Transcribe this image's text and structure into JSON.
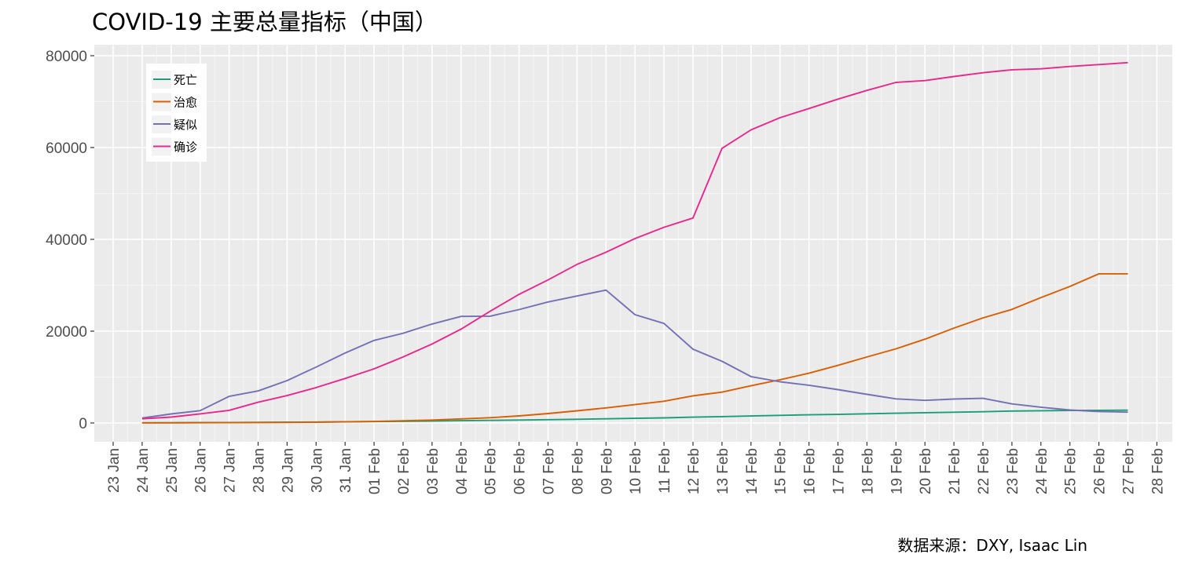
{
  "chart_data": {
    "type": "line",
    "title": "COVID-19 主要总量指标（中国）",
    "caption": "数据来源：DXY, Isaac Lin",
    "xlabel": "",
    "ylabel": "",
    "ylim": [
      -4000,
      82000
    ],
    "xlim": [
      "23 Jan",
      "28 Feb"
    ],
    "grid": true,
    "legend_position": "top-left",
    "y_ticks": [
      0,
      20000,
      40000,
      60000,
      80000
    ],
    "x": [
      "24 Jan",
      "25 Jan",
      "26 Jan",
      "27 Jan",
      "28 Jan",
      "29 Jan",
      "30 Jan",
      "31 Jan",
      "01 Feb",
      "02 Feb",
      "03 Feb",
      "04 Feb",
      "05 Feb",
      "06 Feb",
      "07 Feb",
      "08 Feb",
      "09 Feb",
      "10 Feb",
      "11 Feb",
      "12 Feb",
      "13 Feb",
      "14 Feb",
      "15 Feb",
      "16 Feb",
      "17 Feb",
      "18 Feb",
      "19 Feb",
      "20 Feb",
      "21 Feb",
      "22 Feb",
      "23 Feb",
      "24 Feb",
      "25 Feb",
      "26 Feb",
      "27 Feb"
    ],
    "x_tick_labels": [
      "23 Jan",
      "24 Jan",
      "25 Jan",
      "26 Jan",
      "27 Jan",
      "28 Jan",
      "29 Jan",
      "30 Jan",
      "31 Jan",
      "01 Feb",
      "02 Feb",
      "03 Feb",
      "04 Feb",
      "05 Feb",
      "06 Feb",
      "07 Feb",
      "08 Feb",
      "09 Feb",
      "10 Feb",
      "11 Feb",
      "12 Feb",
      "13 Feb",
      "14 Feb",
      "15 Feb",
      "16 Feb",
      "17 Feb",
      "18 Feb",
      "19 Feb",
      "20 Feb",
      "21 Feb",
      "22 Feb",
      "23 Feb",
      "24 Feb",
      "25 Feb",
      "26 Feb",
      "27 Feb",
      "28 Feb"
    ],
    "series": [
      {
        "name": "死亡",
        "color": "#1b9e77",
        "values": [
          41,
          56,
          80,
          106,
          132,
          170,
          213,
          259,
          304,
          361,
          425,
          490,
          563,
          636,
          722,
          811,
          908,
          1016,
          1113,
          1259,
          1380,
          1523,
          1665,
          1770,
          1868,
          2004,
          2118,
          2236,
          2345,
          2442,
          2592,
          2663,
          2715,
          2744,
          2788
        ]
      },
      {
        "name": "治愈",
        "color": "#d95f02",
        "values": [
          34,
          38,
          51,
          60,
          103,
          125,
          171,
          243,
          328,
          475,
          632,
          892,
          1153,
          1540,
          2050,
          2651,
          3281,
          3996,
          4740,
          5911,
          6723,
          8096,
          9419,
          10844,
          12552,
          14376,
          16155,
          18264,
          20659,
          22888,
          24734,
          27323,
          29745,
          32495,
          32500
        ]
      },
      {
        "name": "疑似",
        "color": "#7570b3",
        "values": [
          1072,
          1965,
          2684,
          5794,
          6973,
          9239,
          12167,
          15238,
          17988,
          19544,
          21558,
          23214,
          23260,
          24702,
          26359,
          27657,
          28942,
          23589,
          21675,
          16067,
          13435,
          10109,
          8969,
          8228,
          7264,
          6242,
          5248,
          4922,
          5206,
          5365,
          4148,
          3434,
          2824,
          2491,
          2358
        ]
      },
      {
        "name": "确诊",
        "color": "#e7298a",
        "values": [
          900,
          1287,
          1975,
          2744,
          4515,
          5974,
          7711,
          9692,
          11791,
          14380,
          17205,
          20438,
          24324,
          28018,
          31161,
          34546,
          37198,
          40171,
          42638,
          44653,
          59804,
          63851,
          66492,
          68500,
          70548,
          72436,
          74185,
          74576,
          75465,
          76288,
          76936,
          77150,
          77658,
          78064,
          78497
        ]
      }
    ]
  }
}
